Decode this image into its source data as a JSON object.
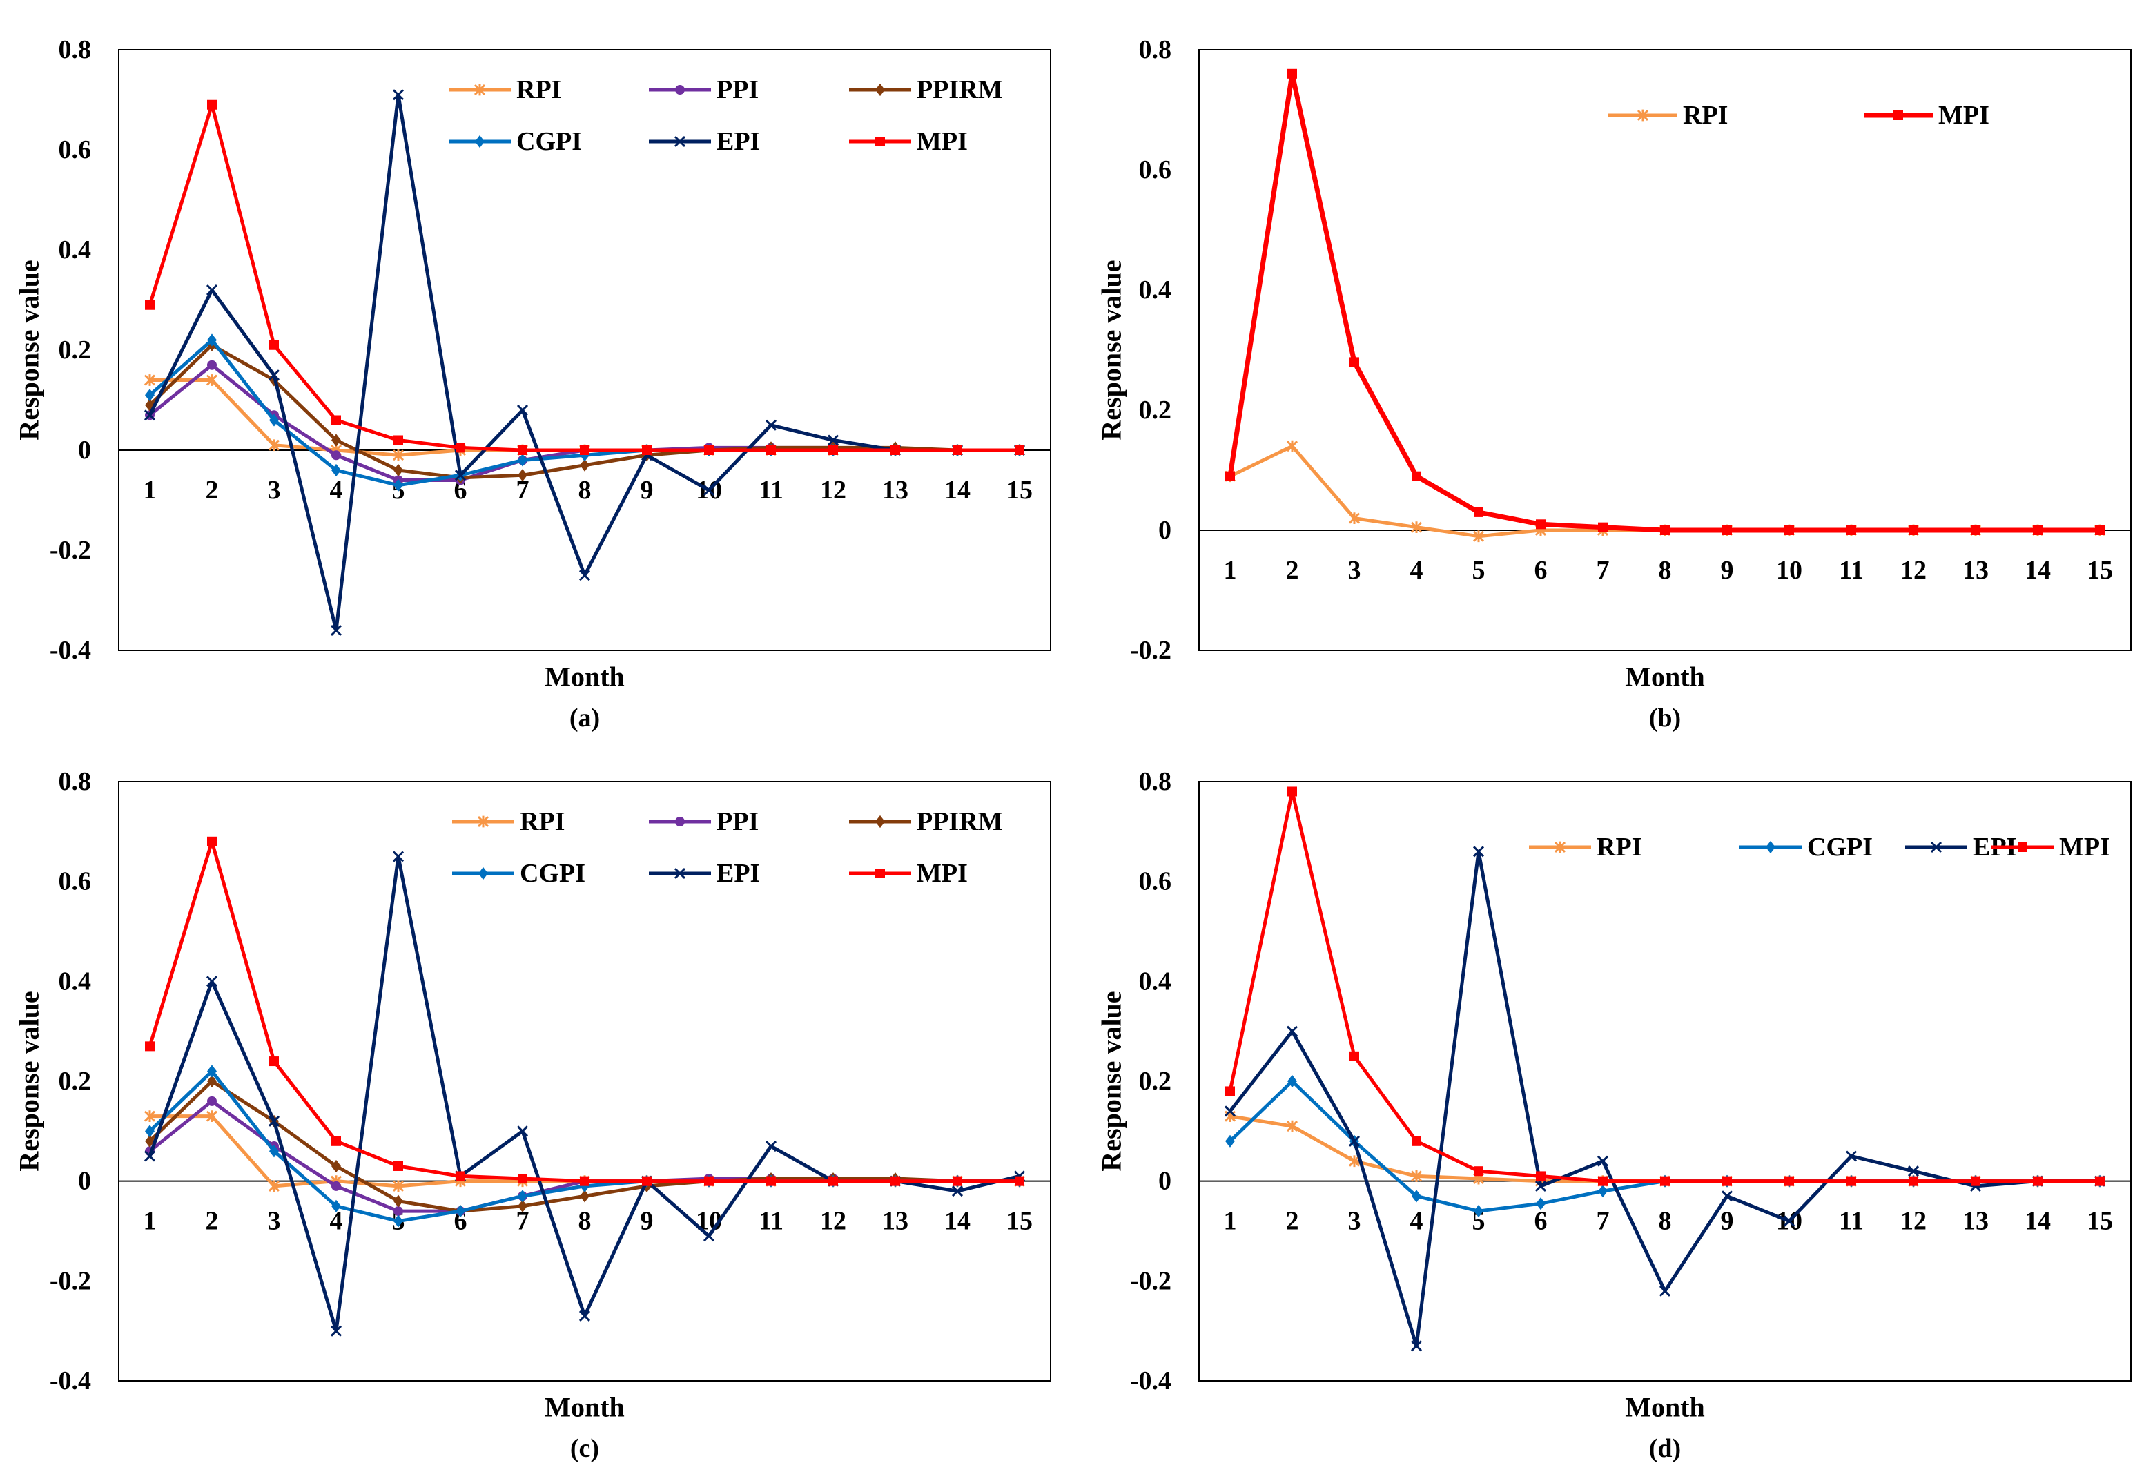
{
  "figure": {
    "colors": {
      "RPI": "#F79646",
      "PPI": "#7030A0",
      "PPIRM": "#843C0C",
      "CGPI": "#0070C0",
      "EPI": "#002060",
      "MPI": "#FF0000"
    },
    "markers": {
      "RPI": "asterisk",
      "PPI": "circle",
      "PPIRM": "diamond",
      "CGPI": "diamond",
      "EPI": "cross",
      "MPI": "square"
    }
  },
  "chart_data": [
    {
      "type": "line",
      "panel_label": "(a)",
      "title": "",
      "xlabel": "Month",
      "ylabel": "Response value",
      "ylim": [
        -0.4,
        0.8
      ],
      "yticks": [
        -0.4,
        -0.2,
        0,
        0.2,
        0.4,
        0.6,
        0.8
      ],
      "y_tick_labels": [
        "-0.4",
        "-0.2",
        "0",
        "0.2",
        "0.4",
        "0.6",
        "0.8"
      ],
      "x": [
        "1",
        "2",
        "3",
        "4",
        "5",
        "6",
        "7",
        "8",
        "9",
        "10",
        "11",
        "12",
        "13",
        "14",
        "15"
      ],
      "legend": "top-right",
      "legend_order": [
        "RPI",
        "PPI",
        "PPIRM",
        "CGPI",
        "EPI",
        "MPI"
      ],
      "series": [
        {
          "name": "RPI",
          "values": [
            0.14,
            0.14,
            0.01,
            0.0,
            -0.01,
            0.0,
            0.0,
            0.0,
            0.0,
            0.0,
            0.0,
            0.0,
            0.0,
            0.0,
            0.0
          ]
        },
        {
          "name": "PPI",
          "values": [
            0.07,
            0.17,
            0.07,
            -0.01,
            -0.06,
            -0.06,
            -0.02,
            0.0,
            0.0,
            0.005,
            0.005,
            0.005,
            0.0,
            0.0,
            0.0
          ]
        },
        {
          "name": "PPIRM",
          "values": [
            0.09,
            0.21,
            0.14,
            0.02,
            -0.04,
            -0.055,
            -0.05,
            -0.03,
            -0.01,
            0.0,
            0.005,
            0.005,
            0.005,
            0.0,
            0.0
          ]
        },
        {
          "name": "CGPI",
          "values": [
            0.11,
            0.22,
            0.06,
            -0.04,
            -0.07,
            -0.05,
            -0.02,
            -0.01,
            0.0,
            0.0,
            0.0,
            0.0,
            0.0,
            0.0,
            0.0
          ]
        },
        {
          "name": "EPI",
          "values": [
            0.07,
            0.32,
            0.15,
            -0.36,
            0.71,
            -0.05,
            0.08,
            -0.25,
            -0.01,
            -0.08,
            0.05,
            0.02,
            0.0,
            0.0,
            0.0
          ]
        },
        {
          "name": "MPI",
          "values": [
            0.29,
            0.69,
            0.21,
            0.06,
            0.02,
            0.005,
            0.0,
            0.0,
            0.0,
            0.0,
            0.0,
            0.0,
            0.0,
            0.0,
            0.0
          ]
        }
      ]
    },
    {
      "type": "line",
      "panel_label": "(b)",
      "title": "",
      "xlabel": "Month",
      "ylabel": "Response value",
      "ylim": [
        -0.2,
        0.8
      ],
      "yticks": [
        -0.2,
        0,
        0.2,
        0.4,
        0.6,
        0.8
      ],
      "y_tick_labels": [
        "-0.2",
        "0",
        "0.2",
        "0.4",
        "0.6",
        "0.8"
      ],
      "x": [
        "1",
        "2",
        "3",
        "4",
        "5",
        "6",
        "7",
        "8",
        "9",
        "10",
        "11",
        "12",
        "13",
        "14",
        "15"
      ],
      "legend": "top",
      "legend_order": [
        "RPI",
        "MPI"
      ],
      "series": [
        {
          "name": "RPI",
          "values": [
            0.09,
            0.14,
            0.02,
            0.005,
            -0.01,
            0.0,
            0.0,
            0.0,
            0.0,
            0.0,
            0.0,
            0.0,
            0.0,
            0.0,
            0.0
          ]
        },
        {
          "name": "MPI",
          "values": [
            0.09,
            0.76,
            0.28,
            0.09,
            0.03,
            0.01,
            0.005,
            0.0,
            0.0,
            0.0,
            0.0,
            0.0,
            0.0,
            0.0,
            0.0
          ]
        }
      ]
    },
    {
      "type": "line",
      "panel_label": "(c)",
      "title": "",
      "xlabel": "Month",
      "ylabel": "Response value",
      "ylim": [
        -0.4,
        0.8
      ],
      "yticks": [
        -0.4,
        -0.2,
        0,
        0.2,
        0.4,
        0.6,
        0.8
      ],
      "y_tick_labels": [
        "-0.4",
        "-0.2",
        "0",
        "0.2",
        "0.4",
        "0.6",
        "0.8"
      ],
      "x": [
        "1",
        "2",
        "3",
        "4",
        "5",
        "6",
        "7",
        "8",
        "9",
        "10",
        "11",
        "12",
        "13",
        "14",
        "15"
      ],
      "legend": "top-right",
      "legend_order": [
        "RPI",
        "PPI",
        "PPIRM",
        "CGPI",
        "EPI",
        "MPI"
      ],
      "series": [
        {
          "name": "RPI",
          "values": [
            0.13,
            0.13,
            -0.01,
            0.0,
            -0.01,
            0.0,
            0.0,
            0.0,
            0.0,
            0.0,
            0.0,
            0.0,
            0.0,
            0.0,
            0.0
          ]
        },
        {
          "name": "PPI",
          "values": [
            0.06,
            0.16,
            0.07,
            -0.01,
            -0.06,
            -0.06,
            -0.03,
            0.0,
            0.0,
            0.005,
            0.005,
            0.005,
            0.0,
            0.0,
            0.0
          ]
        },
        {
          "name": "PPIRM",
          "values": [
            0.08,
            0.2,
            0.12,
            0.03,
            -0.04,
            -0.06,
            -0.05,
            -0.03,
            -0.01,
            0.0,
            0.005,
            0.005,
            0.005,
            0.0,
            0.0
          ]
        },
        {
          "name": "CGPI",
          "values": [
            0.1,
            0.22,
            0.06,
            -0.05,
            -0.08,
            -0.06,
            -0.03,
            -0.01,
            0.0,
            0.0,
            0.0,
            0.0,
            0.0,
            0.0,
            0.0
          ]
        },
        {
          "name": "EPI",
          "values": [
            0.05,
            0.4,
            0.12,
            -0.3,
            0.65,
            0.01,
            0.1,
            -0.27,
            0.0,
            -0.11,
            0.07,
            0.0,
            0.0,
            -0.02,
            0.01
          ]
        },
        {
          "name": "MPI",
          "values": [
            0.27,
            0.68,
            0.24,
            0.08,
            0.03,
            0.01,
            0.005,
            0.0,
            0.0,
            0.0,
            0.0,
            0.0,
            0.0,
            0.0,
            0.0
          ]
        }
      ]
    },
    {
      "type": "line",
      "panel_label": "(d)",
      "title": "",
      "xlabel": "Month",
      "ylabel": "Response value",
      "ylim": [
        -0.4,
        0.8
      ],
      "yticks": [
        -0.4,
        -0.2,
        0,
        0.2,
        0.4,
        0.6,
        0.8
      ],
      "y_tick_labels": [
        "-0.4",
        "-0.2",
        "0",
        "0.2",
        "0.4",
        "0.6",
        "0.8"
      ],
      "x": [
        "1",
        "2",
        "3",
        "4",
        "5",
        "6",
        "7",
        "8",
        "9",
        "10",
        "11",
        "12",
        "13",
        "14",
        "15"
      ],
      "legend": "top-right",
      "legend_order": [
        "RPI",
        "CGPI",
        "EPI",
        "MPI"
      ],
      "series": [
        {
          "name": "RPI",
          "values": [
            0.13,
            0.11,
            0.04,
            0.01,
            0.005,
            0.0,
            0.0,
            0.0,
            0.0,
            0.0,
            0.0,
            0.0,
            0.0,
            0.0,
            0.0
          ]
        },
        {
          "name": "CGPI",
          "values": [
            0.08,
            0.2,
            0.08,
            -0.03,
            -0.06,
            -0.045,
            -0.02,
            0.0,
            0.0,
            0.0,
            0.0,
            0.0,
            0.0,
            0.0,
            0.0
          ]
        },
        {
          "name": "EPI",
          "values": [
            0.14,
            0.3,
            0.08,
            -0.33,
            0.66,
            -0.01,
            0.04,
            -0.22,
            -0.03,
            -0.08,
            0.05,
            0.02,
            -0.01,
            0.0,
            0.0
          ]
        },
        {
          "name": "MPI",
          "values": [
            0.18,
            0.78,
            0.25,
            0.08,
            0.02,
            0.01,
            0.0,
            0.0,
            0.0,
            0.0,
            0.0,
            0.0,
            0.0,
            0.0,
            0.0
          ]
        }
      ]
    }
  ]
}
